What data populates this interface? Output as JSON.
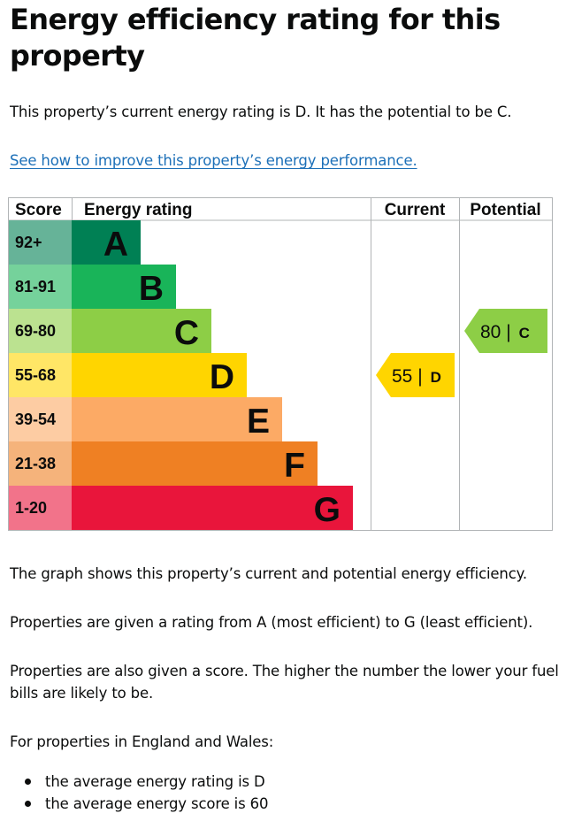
{
  "page": {
    "title": "Energy efficiency rating for this property",
    "summary": "This property’s current energy rating is D. It has the potential to be C.",
    "improve_link": "See how to improve this property’s energy performance.",
    "graph_note": "The graph shows this property’s current and potential energy efficiency.",
    "rating_note": "Properties are given a rating from A (most efficient) to G (least efficient).",
    "score_note": "Properties are also given a score. The higher the number the lower your fuel bills are likely to be.",
    "region_intro": "For properties in England and Wales:",
    "bullets": [
      "the average energy rating is D",
      "the average energy score is 60"
    ]
  },
  "chart_data": {
    "type": "bar",
    "headers": {
      "score": "Score",
      "rating": "Energy rating",
      "current": "Current",
      "potential": "Potential"
    },
    "bands": [
      {
        "letter": "A",
        "range": "92+",
        "min": 92,
        "max": null,
        "color": "#008054",
        "score_bg": "#66b398"
      },
      {
        "letter": "B",
        "range": "81-91",
        "min": 81,
        "max": 91,
        "color": "#19b459",
        "score_bg": "#75d29b"
      },
      {
        "letter": "C",
        "range": "69-80",
        "min": 69,
        "max": 80,
        "color": "#8dce46",
        "score_bg": "#bbe290"
      },
      {
        "letter": "D",
        "range": "55-68",
        "min": 55,
        "max": 68,
        "color": "#ffd500",
        "score_bg": "#ffe666"
      },
      {
        "letter": "E",
        "range": "39-54",
        "min": 39,
        "max": 54,
        "color": "#fcaa65",
        "score_bg": "#fdcca3"
      },
      {
        "letter": "F",
        "range": "21-38",
        "min": 21,
        "max": 38,
        "color": "#ef8023",
        "score_bg": "#f5b37b"
      },
      {
        "letter": "G",
        "range": "1-20",
        "min": 1,
        "max": 20,
        "color": "#e9153b",
        "score_bg": "#f2738a"
      }
    ],
    "current": {
      "score": 55,
      "rating": "D",
      "label": "55 |",
      "color": "#ffd500"
    },
    "potential": {
      "score": 80,
      "rating": "C",
      "label": "80 |",
      "color": "#8dce46"
    }
  }
}
